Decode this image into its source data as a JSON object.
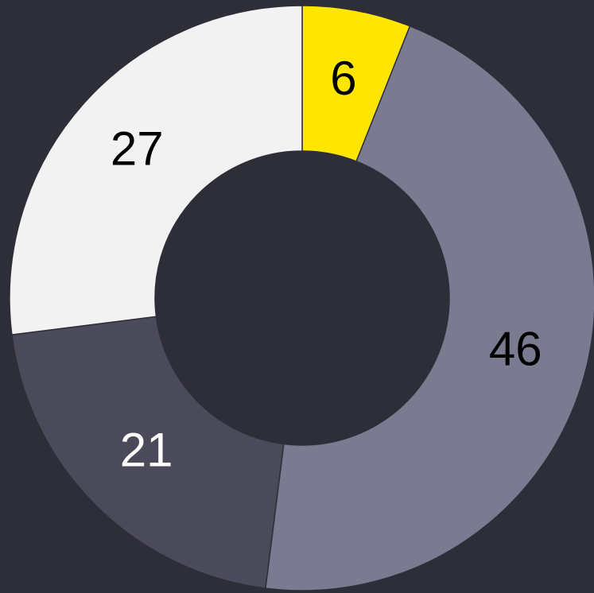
{
  "chart_data": {
    "type": "donut",
    "values": [
      6,
      46,
      21,
      27
    ],
    "colors": [
      "#ffe600",
      "#7a7a91",
      "#4b4a5a",
      "#f2f2f2"
    ]
  }
}
